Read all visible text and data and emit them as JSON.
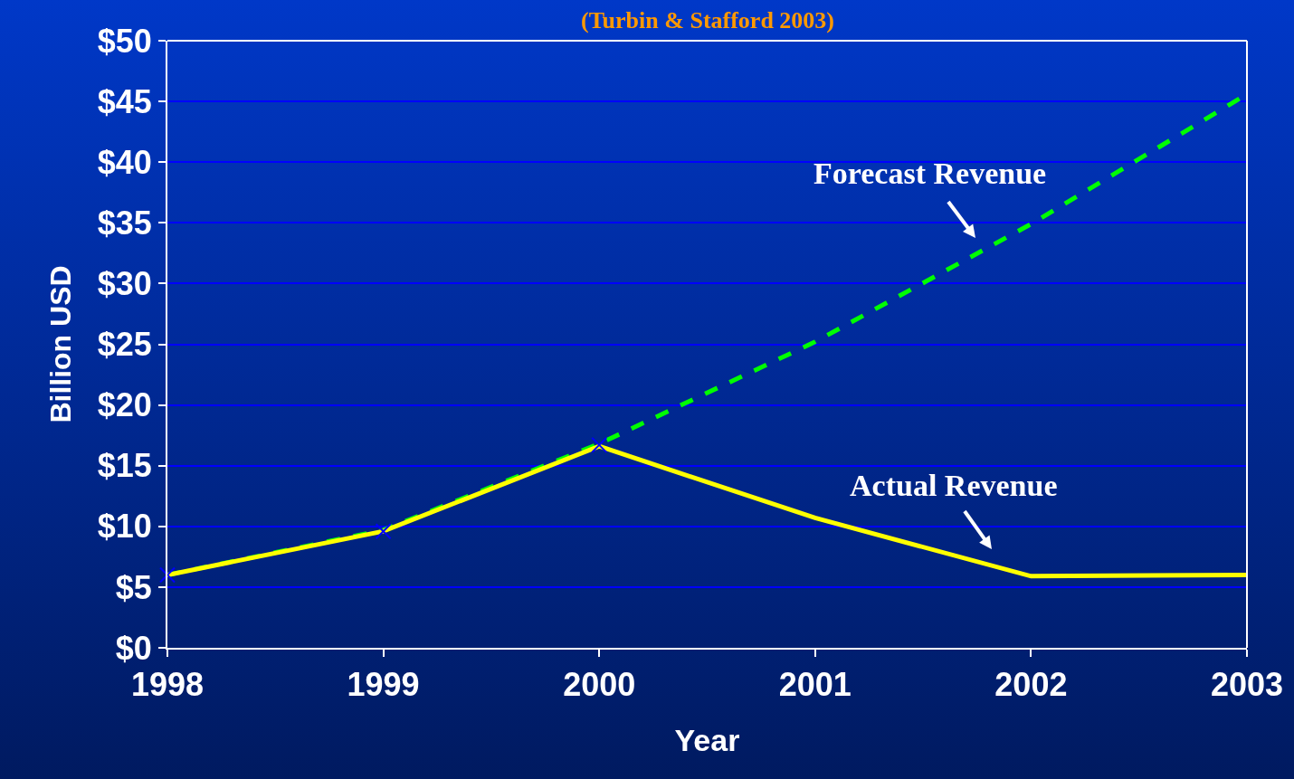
{
  "chart_data": {
    "type": "line",
    "subtitle": "(Turbin & Stafford 2003)",
    "xlabel": "Year",
    "ylabel": "Billion USD",
    "x": [
      1998,
      1999,
      2000,
      2001,
      2002,
      2003
    ],
    "series": [
      {
        "color": "#00ff00",
        "line_style": "dashed",
        "marker": "none",
        "values": [
          6.0,
          9.7,
          16.8,
          25.2,
          34.9,
          45.6
        ]
      },
      {
        "color": "#ffff00",
        "line_style": "solid",
        "marker": "none",
        "values": [
          6.0,
          9.6,
          16.6,
          10.7,
          5.9,
          6.0
        ]
      },
      {
        "type": "scatter",
        "color": "#0000ff",
        "marker": "cross",
        "values": [
          6.0,
          9.6,
          16.7,
          null,
          null,
          null
        ]
      }
    ],
    "xlim": [
      1998,
      2003
    ],
    "xticks": [
      1998,
      1999,
      2000,
      2001,
      2002,
      2003
    ],
    "ylim": [
      0,
      50
    ],
    "yticks": [
      {
        "value": 0,
        "label": "$0"
      },
      {
        "value": 5,
        "label": "$5"
      },
      {
        "value": 10,
        "label": "$10"
      },
      {
        "value": 15,
        "label": "$15"
      },
      {
        "value": 20,
        "label": "$20"
      },
      {
        "value": 25,
        "label": "$25"
      },
      {
        "value": 30,
        "label": "$30"
      },
      {
        "value": 35,
        "label": "$35"
      },
      {
        "value": 40,
        "label": "$40"
      },
      {
        "value": 45,
        "label": "$45"
      },
      {
        "value": 50,
        "label": "$50"
      }
    ],
    "grid": "y",
    "annotations": [
      "Forecast Revenue",
      "Actual Revenue"
    ]
  }
}
